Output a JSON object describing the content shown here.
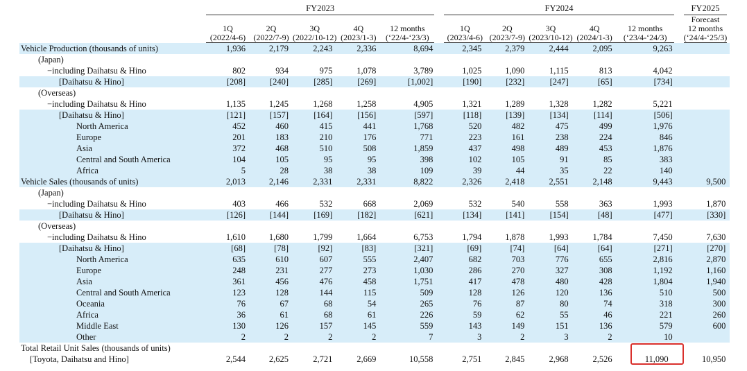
{
  "header": {
    "groups": [
      "FY2023",
      "FY2024",
      "FY2025"
    ],
    "columns": [
      [
        "1Q",
        "(2022/4-6)"
      ],
      [
        "2Q",
        "(2022/7-9)"
      ],
      [
        "3Q",
        "(2022/10-12)"
      ],
      [
        "4Q",
        "(2023/1-3)"
      ],
      [
        "12 months",
        "(‘22/4-‘23/3)"
      ],
      [
        "1Q",
        "(2023/4-6)"
      ],
      [
        "2Q",
        "(2023/7-9)"
      ],
      [
        "3Q",
        "(2023/10-12)"
      ],
      [
        "4Q",
        "(2024/1-3)"
      ],
      [
        "12 months",
        "(‘23/4-‘24/3)"
      ],
      [
        "Forecast",
        "12 months",
        "(‘24/4-‘25/3)"
      ]
    ]
  },
  "table": {
    "rows": [
      [
        "Vehicle Production (thousands of units)",
        "1,936",
        "2,179",
        "2,243",
        "2,336",
        "8,694",
        "2,345",
        "2,379",
        "2,444",
        "2,095",
        "9,263",
        null
      ],
      [
        "(Japan)",
        null,
        null,
        null,
        null,
        null,
        null,
        null,
        null,
        null,
        null,
        null
      ],
      [
        "−including Daihatsu & Hino",
        "802",
        "934",
        "975",
        "1,078",
        "3,789",
        "1,025",
        "1,090",
        "1,115",
        "813",
        "4,042",
        null
      ],
      [
        "[Daihatsu & Hino]",
        "[208]",
        "[240]",
        "[285]",
        "[269]",
        "[1,002]",
        "[190]",
        "[232]",
        "[247]",
        "[65]",
        "[734]",
        null
      ],
      [
        "(Overseas)",
        null,
        null,
        null,
        null,
        null,
        null,
        null,
        null,
        null,
        null,
        null
      ],
      [
        "−including Daihatsu & Hino",
        "1,135",
        "1,245",
        "1,268",
        "1,258",
        "4,905",
        "1,321",
        "1,289",
        "1,328",
        "1,282",
        "5,221",
        null
      ],
      [
        "[Daihatsu & Hino]",
        "[121]",
        "[157]",
        "[164]",
        "[156]",
        "[597]",
        "[118]",
        "[139]",
        "[134]",
        "[114]",
        "[506]",
        null
      ],
      [
        "North America",
        "452",
        "460",
        "415",
        "441",
        "1,768",
        "520",
        "482",
        "475",
        "499",
        "1,976",
        null
      ],
      [
        "Europe",
        "201",
        "183",
        "210",
        "176",
        "771",
        "223",
        "161",
        "238",
        "224",
        "846",
        null
      ],
      [
        "Asia",
        "372",
        "468",
        "510",
        "508",
        "1,859",
        "437",
        "498",
        "489",
        "453",
        "1,876",
        null
      ],
      [
        "Central and South America",
        "104",
        "105",
        "95",
        "95",
        "398",
        "102",
        "105",
        "91",
        "85",
        "383",
        null
      ],
      [
        "Africa",
        "5",
        "28",
        "38",
        "38",
        "109",
        "39",
        "44",
        "35",
        "22",
        "140",
        null
      ],
      [
        "Vehicle Sales (thousands of units)",
        "2,013",
        "2,146",
        "2,331",
        "2,331",
        "8,822",
        "2,326",
        "2,418",
        "2,551",
        "2,148",
        "9,443",
        "9,500"
      ],
      [
        "(Japan)",
        null,
        null,
        null,
        null,
        null,
        null,
        null,
        null,
        null,
        null,
        null
      ],
      [
        "−including Daihatsu & Hino",
        "403",
        "466",
        "532",
        "668",
        "2,069",
        "532",
        "540",
        "558",
        "363",
        "1,993",
        "1,870"
      ],
      [
        "[Daihatsu & Hino]",
        "[126]",
        "[144]",
        "[169]",
        "[182]",
        "[621]",
        "[134]",
        "[141]",
        "[154]",
        "[48]",
        "[477]",
        "[330]"
      ],
      [
        "(Overseas)",
        null,
        null,
        null,
        null,
        null,
        null,
        null,
        null,
        null,
        null,
        null
      ],
      [
        "−including Daihatsu & Hino",
        "1,610",
        "1,680",
        "1,799",
        "1,664",
        "6,753",
        "1,794",
        "1,878",
        "1,993",
        "1,784",
        "7,450",
        "7,630"
      ],
      [
        "[Daihatsu & Hino]",
        "[68]",
        "[78]",
        "[92]",
        "[83]",
        "[321]",
        "[69]",
        "[74]",
        "[64]",
        "[64]",
        "[271]",
        "[270]"
      ],
      [
        "North America",
        "635",
        "610",
        "607",
        "555",
        "2,407",
        "682",
        "703",
        "776",
        "655",
        "2,816",
        "2,870"
      ],
      [
        "Europe",
        "248",
        "231",
        "277",
        "273",
        "1,030",
        "286",
        "270",
        "327",
        "308",
        "1,192",
        "1,160"
      ],
      [
        "Asia",
        "361",
        "456",
        "476",
        "458",
        "1,751",
        "417",
        "478",
        "480",
        "428",
        "1,804",
        "1,940"
      ],
      [
        "Central and South America",
        "123",
        "128",
        "144",
        "115",
        "509",
        "128",
        "126",
        "120",
        "136",
        "510",
        "500"
      ],
      [
        "Oceania",
        "76",
        "67",
        "68",
        "54",
        "265",
        "76",
        "87",
        "80",
        "74",
        "318",
        "300"
      ],
      [
        "Africa",
        "36",
        "61",
        "68",
        "61",
        "226",
        "59",
        "62",
        "55",
        "46",
        "221",
        "260"
      ],
      [
        "Middle East",
        "130",
        "126",
        "157",
        "145",
        "559",
        "143",
        "149",
        "151",
        "136",
        "579",
        "600"
      ],
      [
        "Other",
        "2",
        "2",
        "2",
        "2",
        "7",
        "3",
        "2",
        "3",
        "2",
        "10",
        null
      ],
      [
        [
          "Total Retail Unit Sales (thousands of units)",
          "[Toyota, Daihatsu and Hino]"
        ],
        "2,544",
        "2,625",
        "2,721",
        "2,669",
        "10,558",
        "2,751",
        "2,845",
        "2,968",
        "2,526",
        "11,090",
        "10,950"
      ]
    ]
  }
}
